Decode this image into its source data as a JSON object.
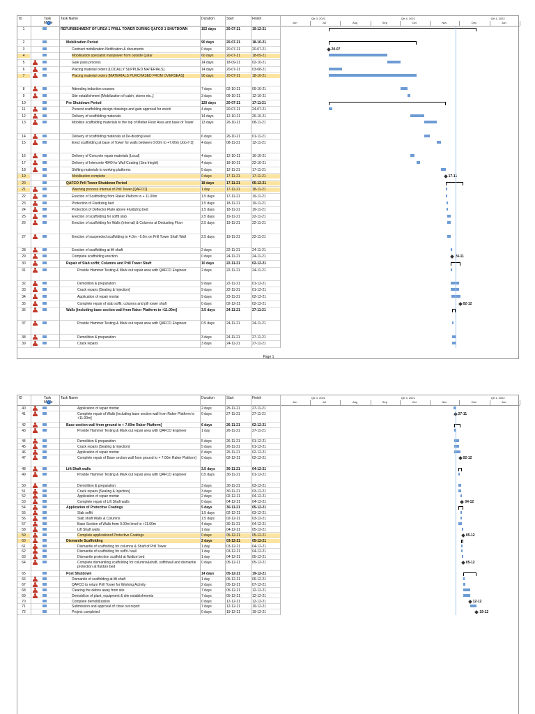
{
  "headers": {
    "id": "ID",
    "mode": "Task Mode",
    "name": "Task Name",
    "duration": "Duration",
    "start": "Start",
    "finish": "Finish"
  },
  "timeline": {
    "q1": "Qtr 3, 2021",
    "q2": "Qtr 4, 2021",
    "q3": "Qtr 1, 2022",
    "months": [
      "Jun",
      "Jul",
      "Aug",
      "Sep",
      "Oct",
      "Nov",
      "Dec",
      "Jan"
    ]
  },
  "footer": "Page 1",
  "page1": [
    {
      "id": "1",
      "name": "REFURBISHMENT OF UREA 1 PRILL TOWER DURING QAFCO 1 SHUTDOWN",
      "duration": "152 days",
      "start": "20-07-21",
      "finish": "19-12-21",
      "summary": true,
      "hl": false,
      "person": false,
      "h": 2
    },
    {
      "id": "2",
      "name": "Mobilization Period",
      "duration": "90 days",
      "start": "20-07-21",
      "finish": "18-10-21",
      "summary": true,
      "hl": false,
      "person": false,
      "h": 1
    },
    {
      "id": "3",
      "name": "Contract mobilization Notification & documents",
      "duration": "0 days",
      "start": "20-07-21",
      "finish": "20-07-21",
      "summary": false,
      "hl": false,
      "person": false,
      "h": 1
    },
    {
      "id": "4",
      "name": "Mobilisation specialist manpower from outside Qatar",
      "duration": "60 days",
      "start": "20-07-21",
      "finish": "18-09-21",
      "summary": false,
      "hl": true,
      "person": false,
      "h": 1
    },
    {
      "id": "5",
      "name": "Gate pass process",
      "duration": "14 days",
      "start": "18-09-21",
      "finish": "02-10-21",
      "summary": false,
      "hl": false,
      "person": true,
      "h": 1
    },
    {
      "id": "6",
      "name": "Placing material orders [LOCALLY SUPPLIED MATERIALS]",
      "duration": "14 days",
      "start": "20-07-21",
      "finish": "03-08-21",
      "summary": false,
      "hl": false,
      "person": true,
      "h": 1
    },
    {
      "id": "7",
      "name": "Placing material orders [MATERIALS PURCHASED FROM OVERSEAS]",
      "duration": "90 days",
      "start": "20-07-21",
      "finish": "18-10-21",
      "summary": false,
      "hl": true,
      "person": true,
      "h": 2
    },
    {
      "id": "8",
      "name": "Attending induction courses",
      "duration": "7 days",
      "start": "02-10-21",
      "finish": "09-10-21",
      "summary": false,
      "hl": false,
      "person": true,
      "h": 1
    },
    {
      "id": "9",
      "name": "Site establishment [Mobilization of cabin; stores etc.,]",
      "duration": "3 days",
      "start": "09-10-21",
      "finish": "12-10-21",
      "summary": false,
      "hl": false,
      "person": true,
      "h": 1
    },
    {
      "id": "10",
      "name": "Pre Shutdown Period",
      "duration": "120 days",
      "start": "20-07-21",
      "finish": "17-11-21",
      "summary": true,
      "hl": false,
      "person": false,
      "h": 1
    },
    {
      "id": "11",
      "name": "Present scaffolding design drawings and gain approval for erecti",
      "duration": "4 days",
      "start": "20-07-21",
      "finish": "24-07-21",
      "summary": false,
      "hl": false,
      "person": true,
      "h": 1
    },
    {
      "id": "12",
      "name": "Delivery of scaffolding materials",
      "duration": "14 days",
      "start": "12-10-21",
      "finish": "26-10-21",
      "summary": false,
      "hl": false,
      "person": true,
      "h": 1
    },
    {
      "id": "13",
      "name": "Mobilize scaffolding materials to the top of Melter Floor Area and base of Tower",
      "duration": "13 days",
      "start": "26-10-21",
      "finish": "08-11-21",
      "summary": false,
      "hl": false,
      "person": true,
      "h": 2
    },
    {
      "id": "14",
      "name": "Delivery of scaffolding materials at De-dusting level",
      "duration": "6 days",
      "start": "26-10-21",
      "finish": "01-11-21",
      "summary": false,
      "hl": false,
      "person": true,
      "h": 1
    },
    {
      "id": "15",
      "name": "Erect scaffolding at base of Tower for walls between 0.00m to +7.00m [Job # 3]",
      "duration": "4 days",
      "start": "08-11-21",
      "finish": "12-11-21",
      "summary": false,
      "hl": false,
      "person": true,
      "h": 2
    },
    {
      "id": "16",
      "name": "Delivery of Concrete repair materials [Local]",
      "duration": "4 days",
      "start": "12-10-21",
      "finish": "16-10-21",
      "summary": false,
      "hl": false,
      "person": true,
      "h": 1
    },
    {
      "id": "17",
      "name": "Delivery of Intercrete 4840 for Wall Coating (Sea frieght)",
      "duration": "4 days",
      "start": "18-10-21",
      "finish": "22-10-21",
      "summary": false,
      "hl": false,
      "person": true,
      "h": 1
    },
    {
      "id": "18",
      "name": "Shifting materials to working platforms",
      "duration": "5 days",
      "start": "12-11-21",
      "finish": "17-11-21",
      "summary": false,
      "hl": false,
      "person": true,
      "h": 1
    },
    {
      "id": "19",
      "name": "Mobilization complete",
      "duration": "0 days",
      "start": "17-11-21",
      "finish": "17-11-21",
      "summary": false,
      "hl": true,
      "person": false,
      "h": 1
    },
    {
      "id": "20",
      "name": "QAFCO Prill Tower Shutdown Period",
      "duration": "18 days",
      "start": "17-11-21",
      "finish": "05-12-21",
      "summary": true,
      "hl": true,
      "person": false,
      "h": 1
    },
    {
      "id": "21",
      "name": "Washing process Internal of Prill Tower [QAFCO]",
      "duration": "1 day",
      "start": "17-11-21",
      "finish": "18-11-21",
      "summary": false,
      "hl": true,
      "person": true,
      "h": 1
    },
    {
      "id": "22",
      "name": "Erection of Scaffolding from Raker Plaform to + 11.00m",
      "duration": "1.5 days",
      "start": "17-11-21",
      "finish": "19-11-21",
      "summary": false,
      "hl": false,
      "person": true,
      "h": 1
    },
    {
      "id": "23",
      "name": "Protection of Fluidizing bed",
      "duration": "1.5 days",
      "start": "18-11-21",
      "finish": "19-11-21",
      "summary": false,
      "hl": false,
      "person": true,
      "h": 1
    },
    {
      "id": "24",
      "name": "Protection of Deflector Plate above Fluidizing bed",
      "duration": "1.5 days",
      "start": "18-11-21",
      "finish": "19-11-21",
      "summary": false,
      "hl": false,
      "person": true,
      "h": 1
    },
    {
      "id": "25",
      "name": "Erection of scaffolding for soffit slab",
      "duration": "2.5 days",
      "start": "19-11-21",
      "finish": "22-11-21",
      "summary": false,
      "hl": false,
      "person": true,
      "h": 1
    },
    {
      "id": "26",
      "name": "Erection of scaffolding for Walls (Internal) & Columns at Dedusting Floor",
      "duration": "2.5 days",
      "start": "19-11-21",
      "finish": "22-11-21",
      "summary": false,
      "hl": false,
      "person": true,
      "h": 2
    },
    {
      "id": "27",
      "name": "Erection of suspended scaffolding to 4.0m - 6.0m on Prill Tower Shaft Wall",
      "duration": "2.5 days",
      "start": "19-11-21",
      "finish": "22-11-21",
      "summary": false,
      "hl": false,
      "person": true,
      "h": 2
    },
    {
      "id": "28",
      "name": "Erection of scaffolding at lift shaft",
      "duration": "2 days",
      "start": "22-11-21",
      "finish": "24-11-21",
      "summary": false,
      "hl": false,
      "person": true,
      "h": 1
    },
    {
      "id": "29",
      "name": "Complete scaffolding erection",
      "duration": "0 days",
      "start": "24-11-21",
      "finish": "24-11-21",
      "summary": false,
      "hl": false,
      "person": true,
      "h": 1
    },
    {
      "id": "30",
      "name": "Repair of Slab soffit; Columns and Prill Tower Shaft",
      "duration": "10 days",
      "start": "22-11-21",
      "finish": "02-12-21",
      "summary": true,
      "hl": false,
      "person": true,
      "h": 1
    },
    {
      "id": "31",
      "name": "Provide Hammer Testing & Mark out repair area with QAFCO Engineer",
      "duration": "2 days",
      "start": "22-11-21",
      "finish": "24-11-21",
      "summary": false,
      "hl": false,
      "person": true,
      "h": 2
    },
    {
      "id": "32",
      "name": "Demolition & preparation",
      "duration": "9 days",
      "start": "22-11-21",
      "finish": "01-12-21",
      "summary": false,
      "hl": false,
      "person": true,
      "h": 1
    },
    {
      "id": "33",
      "name": "Crack repairs [Sealing & Injection]",
      "duration": "9 days",
      "start": "22-11-21",
      "finish": "01-12-21",
      "summary": false,
      "hl": false,
      "person": true,
      "h": 1
    },
    {
      "id": "34",
      "name": "Application of repair mortar",
      "duration": "9 days",
      "start": "23-11-21",
      "finish": "02-12-21",
      "summary": false,
      "hl": false,
      "person": true,
      "h": 1
    },
    {
      "id": "35",
      "name": "Complete repair of slab soffit: columns and pill rower shaft",
      "duration": "0 days",
      "start": "02-12-21",
      "finish": "02-12-21",
      "summary": false,
      "hl": false,
      "person": true,
      "h": 1
    },
    {
      "id": "36",
      "name": "Walls [including base section wall from Raker Platform to +11.00m]",
      "duration": "3.5 days",
      "start": "24-11-21",
      "finish": "27-11-21",
      "summary": true,
      "hl": false,
      "person": true,
      "h": 2
    },
    {
      "id": "37",
      "name": "Provide Hammer Testing & Mark out repair area with QAFCO Engineer",
      "duration": "0.5 days",
      "start": "24-11-21",
      "finish": "24-11-21",
      "summary": false,
      "hl": false,
      "person": true,
      "h": 2
    },
    {
      "id": "38",
      "name": "Demolition & preparation",
      "duration": "3 days",
      "start": "24-11-21",
      "finish": "27-11-21",
      "summary": false,
      "hl": false,
      "person": true,
      "h": 1
    },
    {
      "id": "39",
      "name": "Crack repairs",
      "duration": "3 days",
      "start": "24-11-21",
      "finish": "27-11-21",
      "summary": false,
      "hl": false,
      "person": true,
      "h": 1
    }
  ],
  "page2": [
    {
      "id": "40",
      "name": "Application of repair mortar",
      "duration": "2 days",
      "start": "25-11-21",
      "finish": "27-11-21",
      "summary": false,
      "hl": false,
      "person": true,
      "h": 1
    },
    {
      "id": "41",
      "name": "Complete repair of Walls [including base section wall from Raker Platform to +11.00m]",
      "duration": "0 days",
      "start": "27-11-21",
      "finish": "27-11-21",
      "summary": false,
      "hl": false,
      "person": true,
      "h": 2
    },
    {
      "id": "42",
      "name": "Base section wall from ground to + 7.00m Raker Platform]",
      "duration": "6 days",
      "start": "26-11-21",
      "finish": "02-12-21",
      "summary": true,
      "hl": false,
      "person": true,
      "h": 1
    },
    {
      "id": "43",
      "name": "Provide Hammer Testing & Mark out repair area with QAFCO Engineer",
      "duration": "1 day",
      "start": "26-11-21",
      "finish": "27-11-21",
      "summary": false,
      "hl": false,
      "person": true,
      "h": 2
    },
    {
      "id": "44",
      "name": "Demolition & preparation",
      "duration": "5 days",
      "start": "26-11-21",
      "finish": "01-12-21",
      "summary": false,
      "hl": false,
      "person": true,
      "h": 1
    },
    {
      "id": "45",
      "name": "Crack repairs [Sealing & Injection]",
      "duration": "5 days",
      "start": "26-11-21",
      "finish": "01-12-21",
      "summary": false,
      "hl": false,
      "person": true,
      "h": 1
    },
    {
      "id": "46",
      "name": "Application of repair mortar",
      "duration": "6 days",
      "start": "26-11-21",
      "finish": "02-12-21",
      "summary": false,
      "hl": false,
      "person": true,
      "h": 1
    },
    {
      "id": "47",
      "name": "Complete repair of Base section wall from ground to + 7.00m Raker Platform]",
      "duration": "0 days",
      "start": "02-12-21",
      "finish": "02-12-21",
      "summary": false,
      "hl": false,
      "person": true,
      "h": 2
    },
    {
      "id": "48",
      "name": "Lift Shaft walls",
      "duration": "3.5 days",
      "start": "30-11-21",
      "finish": "04-12-21",
      "summary": true,
      "hl": false,
      "person": true,
      "h": 1
    },
    {
      "id": "49",
      "name": "Provide Hammer Testing & Mark out repair area with QAFCO Engineer",
      "duration": "0.5 days",
      "start": "30-11-21",
      "finish": "01-12-21",
      "summary": false,
      "hl": false,
      "person": true,
      "h": 2
    },
    {
      "id": "50",
      "name": "Demolition & preparation",
      "duration": "3 days",
      "start": "30-11-21",
      "finish": "03-12-21",
      "summary": false,
      "hl": false,
      "person": true,
      "h": 1
    },
    {
      "id": "51",
      "name": "Crack repairs [Sealing & Injection]",
      "duration": "3 days",
      "start": "30-11-21",
      "finish": "03-12-21",
      "summary": false,
      "hl": false,
      "person": true,
      "h": 1
    },
    {
      "id": "52",
      "name": "Application of repair mortar",
      "duration": "2 days",
      "start": "02-12-21",
      "finish": "04-12-21",
      "summary": false,
      "hl": false,
      "person": true,
      "h": 1
    },
    {
      "id": "53",
      "name": "Complete repair of Lift Shaft walls",
      "duration": "0 days",
      "start": "04-12-21",
      "finish": "04-12-21",
      "summary": false,
      "hl": false,
      "person": true,
      "h": 1
    },
    {
      "id": "54",
      "name": "Application of Protective Coatings",
      "duration": "5 days",
      "start": "30-11-21",
      "finish": "05-12-21",
      "summary": true,
      "hl": false,
      "person": true,
      "h": 1
    },
    {
      "id": "55",
      "name": "Slab soffit",
      "duration": "1.5 days",
      "start": "02-12-21",
      "finish": "03-12-21",
      "summary": false,
      "hl": false,
      "person": true,
      "h": 1
    },
    {
      "id": "56",
      "name": "Slab shaft Walls & Columns",
      "duration": "1.5 days",
      "start": "02-12-21",
      "finish": "03-12-21",
      "summary": false,
      "hl": false,
      "person": true,
      "h": 1
    },
    {
      "id": "57",
      "name": "Base Section of Walls from 0.00m level to +11.00m",
      "duration": "4 days",
      "start": "30-11-21",
      "finish": "04-12-21",
      "summary": false,
      "hl": false,
      "person": true,
      "h": 1
    },
    {
      "id": "58",
      "name": "Lift Shaft walls",
      "duration": "1 day",
      "start": "04-12-21",
      "finish": "05-12-21",
      "summary": false,
      "hl": false,
      "person": true,
      "h": 1
    },
    {
      "id": "59",
      "name": "Complete applicationof Protective Coatings",
      "duration": "0 days",
      "start": "05-12-21",
      "finish": "05-12-21",
      "summary": false,
      "hl": true,
      "person": true,
      "h": 1
    },
    {
      "id": "60",
      "name": "Dismantle Scaffolding",
      "duration": "2 days",
      "start": "03-12-21",
      "finish": "05-12-21",
      "summary": true,
      "hl": true,
      "person": true,
      "h": 1
    },
    {
      "id": "61",
      "name": "Dismantle of scaffolding for columns & Shaft of Prill Tower",
      "duration": "1 day",
      "start": "03-12-21",
      "finish": "04-12-21",
      "summary": false,
      "hl": false,
      "person": true,
      "h": 1
    },
    {
      "id": "62",
      "name": "Dismantle of scaffolding for soffit / wall",
      "duration": "1 day",
      "start": "03-12-21",
      "finish": "04-12-21",
      "summary": false,
      "hl": false,
      "person": true,
      "h": 1
    },
    {
      "id": "63",
      "name": "Dismantle protection scaffold at fluidize bed",
      "duration": "1 day",
      "start": "04-12-21",
      "finish": "05-12-21",
      "summary": false,
      "hl": false,
      "person": true,
      "h": 1
    },
    {
      "id": "64",
      "name": "Complete dismantling scaffolding for columns&shaft, soffit/wall and dismantle protection at fluidize bed",
      "duration": "0 days",
      "start": "05-12-21",
      "finish": "05-12-21",
      "summary": false,
      "hl": false,
      "person": true,
      "h": 2
    },
    {
      "id": "65",
      "name": "Post Shutdown",
      "duration": "14 days",
      "start": "05-12-21",
      "finish": "19-12-21",
      "summary": true,
      "hl": false,
      "person": false,
      "h": 1
    },
    {
      "id": "66",
      "name": "Dismantle of scaffolding at lift shaft",
      "duration": "1 day",
      "start": "05-12-21",
      "finish": "06-12-21",
      "summary": false,
      "hl": false,
      "person": true,
      "h": 1
    },
    {
      "id": "67",
      "name": "QAFCO to return Prill Tower for Working Activity",
      "duration": "2 days",
      "start": "05-12-21",
      "finish": "07-12-21",
      "summary": false,
      "hl": false,
      "person": true,
      "h": 1
    },
    {
      "id": "68",
      "name": "Clearing the debris away from site",
      "duration": "7 days",
      "start": "05-12-21",
      "finish": "12-12-21",
      "summary": false,
      "hl": false,
      "person": true,
      "h": 1
    },
    {
      "id": "69",
      "name": "Demobilize of plant, equipment & site establishments",
      "duration": "7 days",
      "start": "05-12-21",
      "finish": "12-12-21",
      "summary": false,
      "hl": false,
      "person": true,
      "h": 1
    },
    {
      "id": "70",
      "name": "Complete demobilization",
      "duration": "0 days",
      "start": "12-12-21",
      "finish": "12-12-21",
      "summary": false,
      "hl": false,
      "person": false,
      "h": 1
    },
    {
      "id": "71",
      "name": "Submission and approval of close out report",
      "duration": "7 days",
      "start": "12-12-21",
      "finish": "19-12-21",
      "summary": false,
      "hl": false,
      "person": false,
      "h": 1
    },
    {
      "id": "72",
      "name": "Project completed",
      "duration": "0 days",
      "start": "19-12-21",
      "finish": "19-12-21",
      "summary": false,
      "hl": false,
      "person": false,
      "h": 1
    }
  ],
  "milestone_labels": {
    "m3": "20-07",
    "m19": "17-11",
    "m29": "24-11",
    "m35": "02-12",
    "m41": "27-11",
    "m47": "02-12",
    "m53": "04-12",
    "m59": "05-12",
    "m64": "05-12",
    "m70": "12-12",
    "m72": "19-12"
  }
}
